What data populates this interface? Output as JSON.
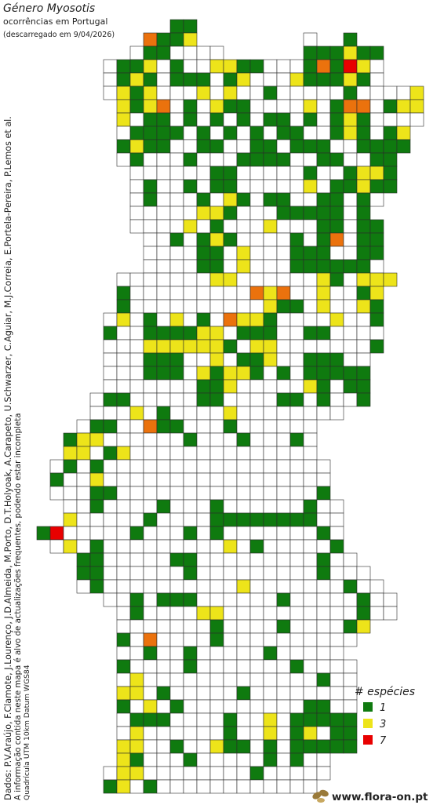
{
  "header": {
    "title": "Género Myosotis",
    "subtitle": "ocorrências em Portugal",
    "date": "(descarregado em 9/04/2026)"
  },
  "credits": [
    "Dados: P.V.Araújo, F.Clamote, J.Lourenço, J.D.Almeida, M.Porto, D.T.Holyoak, A.Carapeto, U.Schwarzer, C.Aguiar, M.J.Correia, E.Portela-Pereira, P.Lemos et al.",
    "A informação contida neste mapa é alvo de actualizações frequentes, podendo estar incompleta",
    "Quadrícula UTM 10km Datum WGS84"
  ],
  "legend": {
    "title": "# espécies",
    "items": [
      {
        "value": 1,
        "color": "#0f7a0f"
      },
      {
        "value": 3,
        "color": "#ede41a"
      },
      {
        "value": 7,
        "color": "#e80000"
      }
    ]
  },
  "grid": {
    "empty_color": "#ffffff",
    "rows": [
      [
        null,
        null,
        null,
        null,
        null,
        null,
        null,
        null,
        null,
        null,
        1,
        1
      ],
      [
        null,
        null,
        null,
        null,
        null,
        null,
        null,
        null,
        5,
        1,
        1,
        3,
        null,
        null,
        null,
        null,
        null,
        null,
        null,
        null,
        0,
        null,
        null,
        1
      ],
      [
        null,
        null,
        null,
        null,
        null,
        null,
        null,
        0,
        1,
        1,
        0,
        0,
        0,
        0,
        null,
        null,
        null,
        null,
        null,
        null,
        1,
        1,
        1,
        3,
        1,
        1
      ],
      [
        null,
        null,
        null,
        null,
        null,
        0,
        1,
        1,
        3,
        0,
        1,
        0,
        0,
        3,
        3,
        1,
        1,
        0,
        0,
        0,
        1,
        5,
        1,
        7,
        3,
        0
      ],
      [
        null,
        null,
        null,
        null,
        null,
        0,
        1,
        3,
        1,
        0,
        1,
        1,
        1,
        0,
        1,
        3,
        0,
        0,
        0,
        3,
        1,
        1,
        1,
        3,
        1,
        0
      ],
      [
        null,
        null,
        null,
        null,
        null,
        0,
        3,
        1,
        3,
        0,
        0,
        0,
        3,
        0,
        3,
        0,
        0,
        1,
        0,
        0,
        0,
        0,
        0,
        1,
        0,
        0,
        0,
        0,
        3
      ],
      [
        null,
        null,
        null,
        null,
        null,
        null,
        3,
        1,
        3,
        5,
        0,
        1,
        0,
        3,
        1,
        1,
        0,
        0,
        0,
        0,
        3,
        0,
        1,
        5,
        5,
        0,
        1,
        3,
        3
      ],
      [
        null,
        null,
        null,
        null,
        null,
        null,
        3,
        0,
        1,
        1,
        0,
        1,
        0,
        1,
        0,
        1,
        0,
        1,
        1,
        0,
        1,
        0,
        1,
        3,
        1,
        0,
        0,
        0,
        0
      ],
      [
        null,
        null,
        null,
        null,
        null,
        null,
        0,
        1,
        1,
        1,
        1,
        0,
        1,
        0,
        1,
        0,
        1,
        0,
        1,
        1,
        0,
        0,
        1,
        3,
        1,
        0,
        1,
        3
      ],
      [
        null,
        null,
        null,
        null,
        null,
        null,
        1,
        3,
        1,
        1,
        0,
        0,
        1,
        1,
        0,
        0,
        1,
        1,
        0,
        1,
        1,
        1,
        0,
        0,
        1,
        1,
        1,
        1
      ],
      [
        null,
        null,
        null,
        null,
        null,
        null,
        0,
        1,
        0,
        0,
        0,
        1,
        0,
        0,
        0,
        1,
        1,
        1,
        1,
        0,
        0,
        1,
        1,
        0,
        0,
        1,
        1
      ],
      [
        null,
        null,
        null,
        null,
        null,
        null,
        null,
        0,
        0,
        0,
        0,
        0,
        0,
        1,
        1,
        0,
        0,
        0,
        0,
        0,
        1,
        0,
        0,
        1,
        3,
        3,
        1
      ],
      [
        null,
        null,
        null,
        null,
        null,
        null,
        null,
        0,
        1,
        0,
        0,
        1,
        0,
        1,
        1,
        0,
        0,
        0,
        0,
        0,
        3,
        0,
        1,
        1,
        3,
        1,
        1
      ],
      [
        null,
        null,
        null,
        null,
        null,
        null,
        null,
        0,
        1,
        0,
        0,
        0,
        1,
        0,
        3,
        1,
        0,
        1,
        1,
        0,
        0,
        1,
        1,
        0,
        1,
        0
      ],
      [
        null,
        null,
        null,
        null,
        null,
        null,
        null,
        0,
        0,
        0,
        0,
        0,
        3,
        3,
        1,
        0,
        0,
        0,
        1,
        1,
        1,
        1,
        1,
        0,
        1
      ],
      [
        null,
        null,
        null,
        null,
        null,
        null,
        null,
        0,
        0,
        0,
        0,
        3,
        0,
        1,
        0,
        0,
        0,
        3,
        0,
        0,
        0,
        1,
        1,
        0,
        1,
        1
      ],
      [
        null,
        null,
        null,
        null,
        null,
        null,
        null,
        null,
        0,
        0,
        1,
        0,
        1,
        3,
        1,
        0,
        0,
        0,
        0,
        1,
        0,
        1,
        5,
        0,
        1,
        1
      ],
      [
        null,
        null,
        null,
        null,
        null,
        null,
        null,
        null,
        0,
        0,
        0,
        0,
        1,
        1,
        0,
        3,
        0,
        0,
        0,
        1,
        1,
        1,
        0,
        0,
        1,
        1
      ],
      [
        null,
        null,
        null,
        null,
        null,
        null,
        null,
        null,
        0,
        0,
        0,
        0,
        1,
        1,
        0,
        3,
        0,
        0,
        0,
        1,
        1,
        1,
        1,
        1,
        1,
        0
      ],
      [
        null,
        null,
        null,
        null,
        null,
        null,
        0,
        0,
        0,
        0,
        0,
        0,
        0,
        3,
        3,
        0,
        0,
        0,
        0,
        0,
        0,
        3,
        1,
        0,
        3,
        3,
        3
      ],
      [
        null,
        null,
        null,
        null,
        null,
        null,
        1,
        0,
        0,
        0,
        0,
        0,
        0,
        0,
        0,
        0,
        5,
        3,
        5,
        0,
        0,
        3,
        0,
        0,
        1,
        3
      ],
      [
        null,
        null,
        null,
        null,
        null,
        null,
        1,
        0,
        0,
        0,
        0,
        0,
        0,
        0,
        0,
        0,
        0,
        3,
        1,
        1,
        0,
        3,
        0,
        0,
        3,
        1
      ],
      [
        null,
        null,
        null,
        null,
        null,
        0,
        3,
        0,
        1,
        0,
        3,
        0,
        1,
        0,
        5,
        3,
        3,
        1,
        0,
        0,
        0,
        0,
        3,
        0,
        0,
        1
      ],
      [
        null,
        null,
        null,
        null,
        null,
        1,
        0,
        0,
        1,
        1,
        1,
        1,
        3,
        3,
        0,
        1,
        1,
        1,
        0,
        0,
        1,
        1,
        0,
        0,
        0,
        0
      ],
      [
        null,
        null,
        null,
        null,
        null,
        0,
        0,
        0,
        3,
        3,
        3,
        3,
        3,
        3,
        1,
        0,
        3,
        3,
        0,
        0,
        0,
        0,
        0,
        0,
        0,
        1
      ],
      [
        null,
        null,
        null,
        null,
        null,
        0,
        0,
        0,
        1,
        1,
        1,
        0,
        0,
        3,
        0,
        1,
        1,
        3,
        0,
        0,
        1,
        1,
        1,
        0,
        0
      ],
      [
        null,
        null,
        null,
        null,
        null,
        0,
        0,
        0,
        1,
        1,
        1,
        0,
        3,
        1,
        3,
        3,
        1,
        0,
        1,
        0,
        1,
        1,
        1,
        1,
        1
      ],
      [
        null,
        null,
        null,
        null,
        null,
        0,
        0,
        0,
        0,
        0,
        0,
        0,
        1,
        1,
        3,
        0,
        0,
        0,
        0,
        0,
        3,
        1,
        0,
        1,
        1
      ],
      [
        null,
        null,
        null,
        null,
        0,
        1,
        1,
        0,
        0,
        0,
        0,
        0,
        1,
        1,
        0,
        0,
        0,
        0,
        1,
        1,
        0,
        1,
        0,
        0,
        1
      ],
      [
        null,
        null,
        null,
        null,
        0,
        0,
        0,
        3,
        0,
        1,
        0,
        0,
        0,
        0,
        3,
        0,
        0,
        0,
        0,
        0,
        0,
        0,
        0
      ],
      [
        null,
        null,
        null,
        0,
        1,
        1,
        0,
        0,
        5,
        1,
        1,
        0,
        0,
        0,
        1,
        0,
        0,
        0,
        0,
        0,
        0
      ],
      [
        null,
        null,
        1,
        3,
        3,
        0,
        0,
        0,
        0,
        0,
        0,
        1,
        0,
        0,
        0,
        1,
        0,
        0,
        0,
        1,
        0
      ],
      [
        null,
        null,
        3,
        3,
        0,
        1,
        3,
        0,
        0,
        0,
        0,
        0,
        0,
        0,
        0,
        0,
        0,
        0,
        0,
        0,
        0
      ],
      [
        null,
        0,
        1,
        0,
        1,
        0,
        0,
        0,
        0,
        0,
        0,
        0,
        0,
        0,
        0,
        0,
        0,
        0,
        0,
        0,
        0,
        0
      ],
      [
        null,
        1,
        0,
        0,
        3,
        0,
        0,
        0,
        0,
        0,
        0,
        0,
        0,
        0,
        0,
        0,
        0,
        0,
        0,
        0,
        0,
        0
      ],
      [
        null,
        0,
        0,
        0,
        1,
        1,
        0,
        0,
        0,
        0,
        0,
        0,
        0,
        0,
        0,
        0,
        0,
        0,
        0,
        0,
        0,
        1
      ],
      [
        null,
        null,
        0,
        0,
        1,
        0,
        0,
        0,
        0,
        1,
        0,
        0,
        0,
        1,
        0,
        0,
        0,
        0,
        0,
        0,
        1,
        0,
        0
      ],
      [
        null,
        null,
        3,
        0,
        0,
        0,
        0,
        0,
        1,
        0,
        0,
        0,
        0,
        1,
        1,
        1,
        1,
        1,
        1,
        1,
        1,
        0,
        0
      ],
      [
        1,
        7,
        0,
        0,
        0,
        0,
        0,
        1,
        0,
        0,
        0,
        1,
        0,
        1,
        0,
        0,
        0,
        0,
        0,
        0,
        0,
        1,
        0
      ],
      [
        null,
        0,
        3,
        0,
        1,
        0,
        0,
        0,
        0,
        0,
        0,
        0,
        0,
        0,
        3,
        0,
        1,
        0,
        0,
        0,
        0,
        0,
        1
      ],
      [
        null,
        null,
        null,
        1,
        1,
        0,
        0,
        0,
        0,
        0,
        1,
        1,
        0,
        0,
        0,
        0,
        0,
        0,
        0,
        0,
        0,
        1,
        0,
        0
      ],
      [
        null,
        null,
        null,
        1,
        1,
        0,
        0,
        0,
        0,
        0,
        0,
        1,
        0,
        0,
        0,
        0,
        0,
        0,
        0,
        0,
        0,
        1,
        0,
        0,
        0
      ],
      [
        null,
        null,
        null,
        0,
        1,
        0,
        0,
        0,
        0,
        0,
        0,
        0,
        0,
        0,
        0,
        3,
        0,
        0,
        0,
        0,
        0,
        0,
        0,
        1,
        0,
        0
      ],
      [
        null,
        null,
        null,
        null,
        null,
        0,
        0,
        1,
        0,
        1,
        1,
        1,
        0,
        0,
        0,
        0,
        0,
        0,
        1,
        0,
        0,
        0,
        0,
        0,
        1,
        0,
        0
      ],
      [
        null,
        null,
        null,
        null,
        null,
        null,
        0,
        1,
        0,
        0,
        0,
        0,
        3,
        3,
        0,
        0,
        0,
        0,
        0,
        0,
        0,
        0,
        0,
        0,
        1,
        0,
        0
      ],
      [
        null,
        null,
        null,
        null,
        null,
        null,
        0,
        0,
        0,
        0,
        0,
        0,
        0,
        1,
        0,
        0,
        0,
        0,
        1,
        0,
        0,
        0,
        0,
        1,
        3
      ],
      [
        null,
        null,
        null,
        null,
        null,
        null,
        1,
        0,
        5,
        0,
        0,
        0,
        0,
        1,
        0,
        0,
        0,
        0,
        0,
        0,
        0,
        0,
        0,
        0
      ],
      [
        null,
        null,
        null,
        null,
        null,
        null,
        0,
        0,
        1,
        0,
        0,
        1,
        0,
        0,
        0,
        0,
        0,
        1,
        0,
        0,
        0,
        0,
        0
      ],
      [
        null,
        null,
        null,
        null,
        null,
        null,
        1,
        0,
        0,
        0,
        0,
        1,
        0,
        0,
        0,
        0,
        0,
        0,
        0,
        1,
        0,
        0,
        0,
        0
      ],
      [
        null,
        null,
        null,
        null,
        null,
        null,
        0,
        3,
        0,
        0,
        0,
        0,
        0,
        0,
        0,
        0,
        0,
        0,
        0,
        0,
        0,
        1,
        0,
        0
      ],
      [
        null,
        null,
        null,
        null,
        null,
        null,
        3,
        3,
        0,
        1,
        0,
        0,
        0,
        0,
        0,
        1,
        0,
        0,
        0,
        0,
        0,
        0,
        0,
        0
      ],
      [
        null,
        null,
        null,
        null,
        null,
        null,
        1,
        0,
        3,
        0,
        1,
        0,
        0,
        0,
        0,
        0,
        0,
        0,
        0,
        0,
        1,
        1,
        0,
        0
      ],
      [
        null,
        null,
        null,
        null,
        null,
        null,
        0,
        1,
        1,
        1,
        0,
        0,
        0,
        0,
        1,
        0,
        0,
        3,
        0,
        1,
        1,
        1,
        1,
        1
      ],
      [
        null,
        null,
        null,
        null,
        null,
        null,
        0,
        3,
        0,
        0,
        0,
        0,
        0,
        0,
        1,
        0,
        0,
        3,
        0,
        1,
        3,
        0,
        1,
        1
      ],
      [
        null,
        null,
        null,
        null,
        null,
        null,
        3,
        3,
        0,
        0,
        1,
        0,
        0,
        3,
        1,
        1,
        0,
        1,
        0,
        1,
        1,
        1,
        1,
        1
      ],
      [
        null,
        null,
        null,
        null,
        null,
        null,
        3,
        1,
        0,
        0,
        0,
        1,
        0,
        0,
        0,
        0,
        0,
        1,
        0,
        1,
        0,
        0
      ],
      [
        null,
        null,
        null,
        null,
        null,
        0,
        3,
        3,
        0,
        0,
        0,
        0,
        0,
        0,
        0,
        0,
        1,
        0,
        0,
        0,
        0,
        0
      ],
      [
        null,
        null,
        null,
        null,
        null,
        1,
        3,
        0,
        1,
        0,
        0,
        0,
        0,
        0,
        0,
        0,
        0,
        0,
        0,
        0,
        0
      ]
    ]
  },
  "footer": {
    "site": "www.flora-on.pt"
  }
}
